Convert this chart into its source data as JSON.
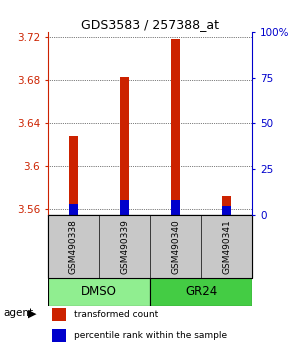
{
  "title": "GDS3583 / 257388_at",
  "samples": [
    "GSM490338",
    "GSM490339",
    "GSM490340",
    "GSM490341"
  ],
  "transformed_counts": [
    3.628,
    3.683,
    3.718,
    3.572
  ],
  "percentile_ranks": [
    6,
    8,
    8,
    5
  ],
  "ylim_left": [
    3.555,
    3.725
  ],
  "ylim_right": [
    0,
    100
  ],
  "yticks_left": [
    3.56,
    3.6,
    3.64,
    3.68,
    3.72
  ],
  "yticks_right": [
    0,
    25,
    50,
    75,
    100
  ],
  "ytick_labels_right": [
    "0",
    "25",
    "50",
    "75",
    "100%"
  ],
  "groups": [
    {
      "label": "DMSO",
      "indices": [
        0,
        1
      ],
      "color": "#90ee90"
    },
    {
      "label": "GR24",
      "indices": [
        2,
        3
      ],
      "color": "#44cc44"
    }
  ],
  "bar_color_red": "#cc2200",
  "bar_color_blue": "#0000cc",
  "bar_width": 0.18,
  "base_value": 3.555,
  "agent_label": "agent",
  "legend_items": [
    {
      "color": "#cc2200",
      "label": "transformed count"
    },
    {
      "color": "#0000cc",
      "label": "percentile rank within the sample"
    }
  ],
  "sample_box_color": "#c8c8c8",
  "left_axis_color": "#cc2200",
  "right_axis_color": "#0000cc"
}
